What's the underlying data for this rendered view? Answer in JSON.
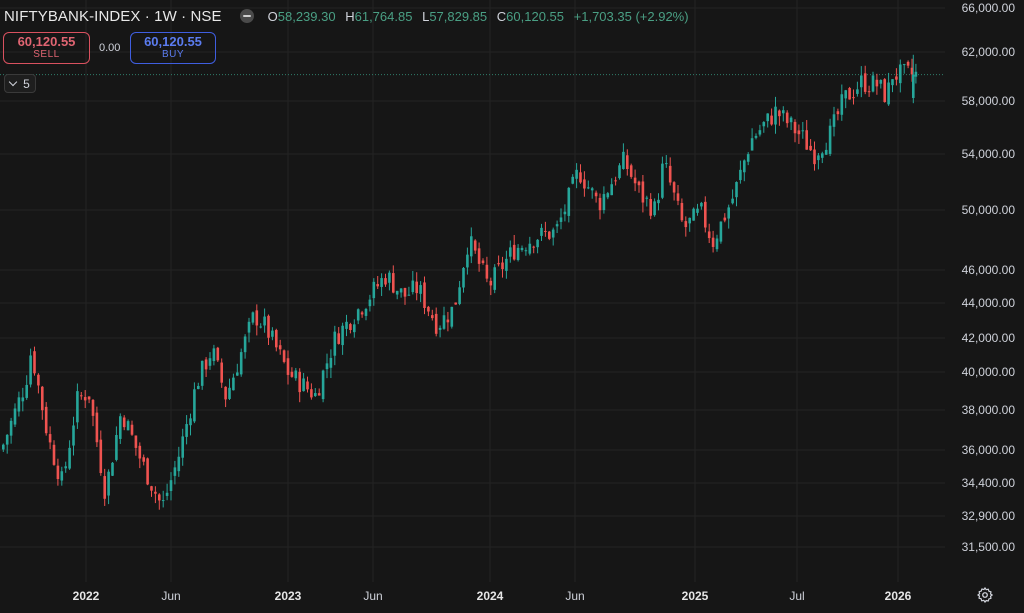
{
  "header": {
    "symbol": "NIFTYBANK-INDEX · 1W · NSE",
    "open_label": "O",
    "open": "58,239.30",
    "high_label": "H",
    "high": "61,764.85",
    "low_label": "L",
    "low": "57,829.85",
    "close_label": "C",
    "close": "60,120.55",
    "change": "+1,703.35 (+2.92%)"
  },
  "trade": {
    "sell_price": "60,120.55",
    "sell_label": "SELL",
    "spread": "0.00",
    "buy_price": "60,120.55",
    "buy_label": "BUY"
  },
  "indicators": {
    "collapsed_count": "5"
  },
  "colors": {
    "background": "#161616",
    "up": "#26a69a",
    "down": "#ef5350",
    "grid": "#242424",
    "price_line": "#2f7d6a"
  },
  "icons": {
    "status": "minus-circle-icon",
    "collapse": "chevron-down-icon",
    "settings": "gear-icon"
  },
  "chart_data": {
    "type": "candlestick",
    "title": "NIFTYBANK-INDEX · 1W · NSE",
    "scale": "log",
    "grid": true,
    "y_ticks": [
      66000,
      62000,
      58000,
      54000,
      50000,
      46000,
      44000,
      42000,
      40000,
      38000,
      36000,
      34400,
      32900,
      31500
    ],
    "y_tick_labels": [
      "66,000.00",
      "62,000.00",
      "58,000.00",
      "54,000.00",
      "50,000.00",
      "46,000.00",
      "44,000.00",
      "42,000.00",
      "40,000.00",
      "38,000.00",
      "36,000.00",
      "34,400.00",
      "32,900.00",
      "31,500.00"
    ],
    "x_ticks": [
      {
        "label": "2022",
        "bold": true
      },
      {
        "label": "Jun",
        "bold": false
      },
      {
        "label": "2023",
        "bold": true
      },
      {
        "label": "Jun",
        "bold": false
      },
      {
        "label": "2024",
        "bold": true
      },
      {
        "label": "Jun",
        "bold": false
      },
      {
        "label": "2025",
        "bold": true
      },
      {
        "label": "Jul",
        "bold": false
      },
      {
        "label": "2026",
        "bold": true
      }
    ],
    "last_price": 60120.55,
    "close_path": [
      [
        "2021-09-01",
        36000
      ],
      [
        "2021-10-15",
        39500
      ],
      [
        "2021-10-25",
        41300
      ],
      [
        "2021-11-25",
        36500
      ],
      [
        "2021-12-20",
        34400
      ],
      [
        "2022-01-15",
        38500
      ],
      [
        "2022-02-05",
        39000
      ],
      [
        "2022-03-07",
        34000
      ],
      [
        "2022-04-05",
        38000
      ],
      [
        "2022-05-10",
        35500
      ],
      [
        "2022-06-17",
        33300
      ],
      [
        "2022-07-15",
        35500
      ],
      [
        "2022-08-19",
        39500
      ],
      [
        "2022-09-15",
        41300
      ],
      [
        "2022-10-10",
        38700
      ],
      [
        "2022-11-30",
        43300
      ],
      [
        "2022-12-20",
        42600
      ],
      [
        "2023-01-30",
        40000
      ],
      [
        "2023-03-20",
        38800
      ],
      [
        "2023-04-25",
        42000
      ],
      [
        "2023-06-15",
        44000
      ],
      [
        "2023-07-25",
        45700
      ],
      [
        "2023-08-25",
        44400
      ],
      [
        "2023-09-20",
        44900
      ],
      [
        "2023-10-25",
        42700
      ],
      [
        "2023-11-24",
        43700
      ],
      [
        "2023-12-20",
        48000
      ],
      [
        "2024-01-25",
        45000
      ],
      [
        "2024-03-10",
        47300
      ],
      [
        "2024-04-20",
        48200
      ],
      [
        "2024-05-25",
        48500
      ],
      [
        "2024-06-10",
        50000
      ],
      [
        "2024-07-05",
        52800
      ],
      [
        "2024-08-10",
        50400
      ],
      [
        "2024-09-25",
        53500
      ],
      [
        "2024-10-25",
        51000
      ],
      [
        "2024-11-20",
        50000
      ],
      [
        "2024-12-05",
        53400
      ],
      [
        "2025-01-10",
        48700
      ],
      [
        "2025-02-10",
        49900
      ],
      [
        "2025-03-03",
        47800
      ],
      [
        "2025-04-10",
        51000
      ],
      [
        "2025-05-10",
        55000
      ],
      [
        "2025-06-25",
        57200
      ],
      [
        "2025-08-10",
        55300
      ],
      [
        "2025-09-01",
        54000
      ],
      [
        "2025-10-01",
        55500
      ],
      [
        "2025-10-25",
        58100
      ],
      [
        "2025-11-25",
        59500
      ],
      [
        "2025-12-25",
        59300
      ],
      [
        "2026-01-10",
        58300
      ],
      [
        "2026-01-20",
        60120
      ]
    ]
  }
}
